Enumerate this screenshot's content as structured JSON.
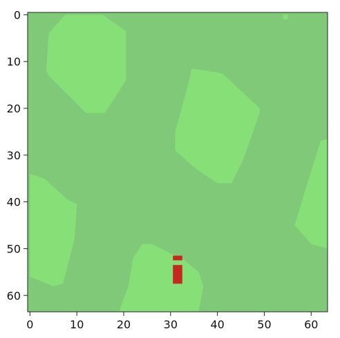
{
  "plot": {
    "x_ticks": [
      "0",
      "10",
      "20",
      "30",
      "40",
      "50",
      "60"
    ],
    "y_ticks": [
      "0",
      "10",
      "20",
      "30",
      "40",
      "50",
      "60"
    ],
    "x_range": [
      -0.5,
      63.5
    ],
    "y_range": [
      -0.5,
      63.5
    ],
    "y_inverted": true
  },
  "colors": {
    "background_grass": "#80c978",
    "light_grass": "#87e077",
    "agent": "#c4291f",
    "axis": "#222222"
  },
  "chart_data": {
    "type": "heatmap",
    "grid_size": [
      64,
      64
    ],
    "base_tile": "grass",
    "patches": [
      {
        "tile": "light_grass",
        "polygon": [
          [
            7.5,
            0
          ],
          [
            15.5,
            0
          ],
          [
            20.5,
            3.5
          ],
          [
            20.5,
            14
          ],
          [
            16,
            21
          ],
          [
            12,
            21
          ],
          [
            4,
            13
          ],
          [
            3.5,
            12
          ],
          [
            4,
            4
          ]
        ]
      },
      {
        "tile": "light_grass",
        "polygon": [
          [
            54,
            0
          ],
          [
            55,
            0
          ],
          [
            55,
            1
          ],
          [
            54,
            1
          ]
        ]
      },
      {
        "tile": "light_grass",
        "polygon": [
          [
            34.5,
            11.5
          ],
          [
            41,
            12.5
          ],
          [
            49,
            20
          ],
          [
            49,
            21
          ],
          [
            45.5,
            31
          ],
          [
            43,
            36
          ],
          [
            40,
            36
          ],
          [
            35.5,
            33
          ],
          [
            31,
            29
          ],
          [
            31,
            25
          ],
          [
            34,
            14
          ]
        ]
      },
      {
        "tile": "light_grass",
        "polygon": [
          [
            63.5,
            26.5
          ],
          [
            63.5,
            50
          ],
          [
            60,
            49
          ],
          [
            56.5,
            45
          ],
          [
            58,
            40
          ],
          [
            62,
            27
          ]
        ]
      },
      {
        "tile": "light_grass",
        "polygon": [
          [
            0,
            34
          ],
          [
            3,
            35
          ],
          [
            8,
            39.5
          ],
          [
            10,
            40.5
          ],
          [
            9.5,
            48
          ],
          [
            7,
            57.5
          ],
          [
            5,
            58
          ],
          [
            0,
            56
          ]
        ]
      },
      {
        "tile": "light_grass",
        "polygon": [
          [
            24,
            49
          ],
          [
            26,
            49
          ],
          [
            33,
            52.5
          ],
          [
            36,
            55
          ],
          [
            37,
            58
          ],
          [
            36,
            63.5
          ],
          [
            19,
            63.5
          ],
          [
            21,
            58
          ],
          [
            22,
            52
          ]
        ]
      }
    ],
    "agent": {
      "tile": "player",
      "x": 31,
      "y_dot": 52,
      "y_body": [
        54,
        57
      ]
    }
  }
}
